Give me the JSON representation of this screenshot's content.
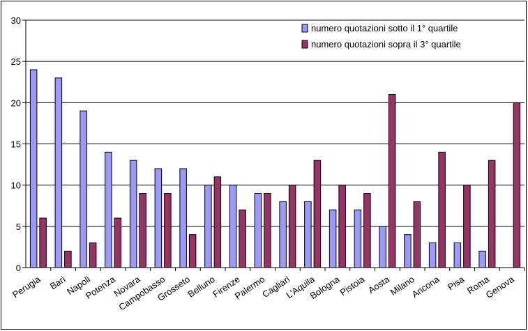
{
  "chart_data": {
    "type": "bar",
    "categories": [
      "Perugia",
      "Bari",
      "Napoli",
      "Potenza",
      "Novara",
      "Campobasso",
      "Grosseto",
      "Belluno",
      "Firenze",
      "Palermo",
      "Cagliari",
      "L'Aquila",
      "Bologna",
      "Pistoia",
      "Aosta",
      "Milano",
      "Ancona",
      "Pisa",
      "Roma",
      "Genova"
    ],
    "series": [
      {
        "name": "numero quotazioni sotto il 1° quartile",
        "color": "#9999ff",
        "values": [
          24,
          23,
          19,
          14,
          13,
          12,
          12,
          10,
          10,
          9,
          8,
          8,
          7,
          7,
          5,
          4,
          3,
          3,
          2,
          0
        ]
      },
      {
        "name": "numero quotazioni sopra il 3° quartile",
        "color": "#993366",
        "values": [
          6,
          2,
          3,
          6,
          9,
          9,
          4,
          11,
          7,
          9,
          10,
          13,
          10,
          9,
          21,
          8,
          14,
          10,
          13,
          20
        ]
      }
    ],
    "ylim": [
      0,
      30
    ],
    "yticks": [
      0,
      5,
      10,
      15,
      20,
      25,
      30
    ],
    "grid": true,
    "legend_position": "top-right"
  }
}
